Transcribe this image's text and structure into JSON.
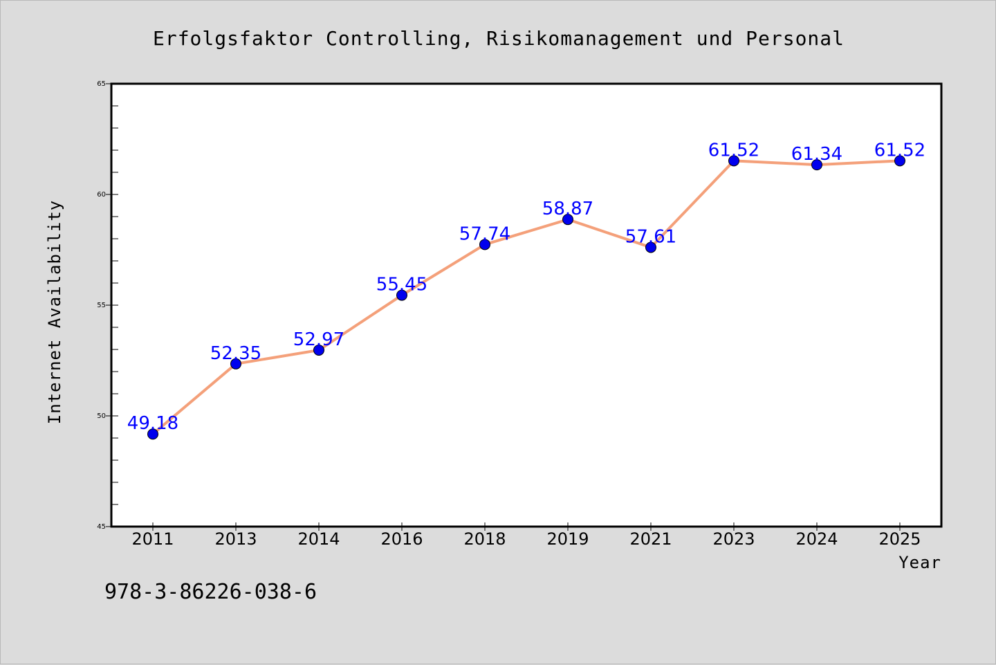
{
  "chart_data": {
    "type": "line",
    "title": "Erfolgsfaktor Controlling, Risikomanagement und Personal",
    "xlabel": "Year",
    "ylabel": "Internet Availability",
    "categories": [
      "2011",
      "2013",
      "2014",
      "2016",
      "2018",
      "2019",
      "2021",
      "2023",
      "2024",
      "2025"
    ],
    "series": [
      {
        "values": [
          49.18,
          52.35,
          52.97,
          55.45,
          57.74,
          58.87,
          57.61,
          61.52,
          61.34,
          61.52
        ],
        "labels": [
          "49.18",
          "52.35",
          "52.97",
          "55.45",
          "57.74",
          "58.87",
          "57.61",
          "61.52",
          "61.34",
          "61.52"
        ]
      }
    ],
    "ylim": [
      45,
      65
    ],
    "y_ticks": [
      "45",
      "50",
      "55",
      "60",
      "65"
    ],
    "y_tick_values": [
      45,
      50,
      55,
      60,
      65
    ],
    "grid": false,
    "colors": {
      "line": "#f4a07a",
      "marker": "#0000ee",
      "data_label": "#0000ff",
      "background": "#dcdcdc",
      "plot_area": "#ffffff"
    }
  },
  "footer": {
    "isbn": "978-3-86226-038-6"
  }
}
